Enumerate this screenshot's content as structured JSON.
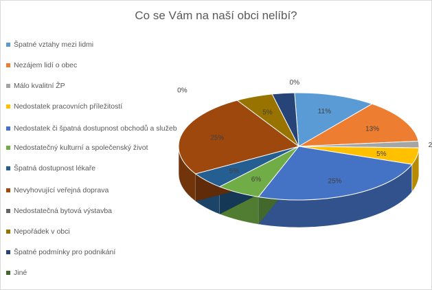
{
  "chart_data": {
    "type": "pie",
    "title": "Co se Vám na naší obci nelíbí?",
    "legend_position": "left",
    "categories": [
      "Špatné vztahy mezi lidmi",
      "Nezájem lidí o obec",
      "Málo kvalitní ŽP",
      "Nedostatek pracovních příležitostí",
      "Nedostatek či špatná dostupnost obchodů a služeb",
      "Nedostatečný kulturní a společenský život",
      "Špatná dostupnost lékaře",
      "Nevyhovující veřejná doprava",
      "Nedostatečná bytová výstavba",
      "Nepořádek v obci",
      "Špatné podmínky pro podnikání",
      "Jiné"
    ],
    "values": [
      11,
      13,
      2,
      5,
      25,
      6,
      5,
      25,
      0,
      5,
      3,
      0
    ],
    "data_labels": [
      "11%",
      "13%",
      "2%",
      "5%",
      "25%",
      "6%",
      "5%",
      "25%",
      "0%",
      "5%",
      "",
      "0%"
    ],
    "colors": [
      "#5B9BD5",
      "#ED7D31",
      "#A5A5A5",
      "#FFC000",
      "#4472C4",
      "#70AD47",
      "#255E91",
      "#9E480E",
      "#636363",
      "#997300",
      "#264478",
      "#43682B"
    ]
  }
}
